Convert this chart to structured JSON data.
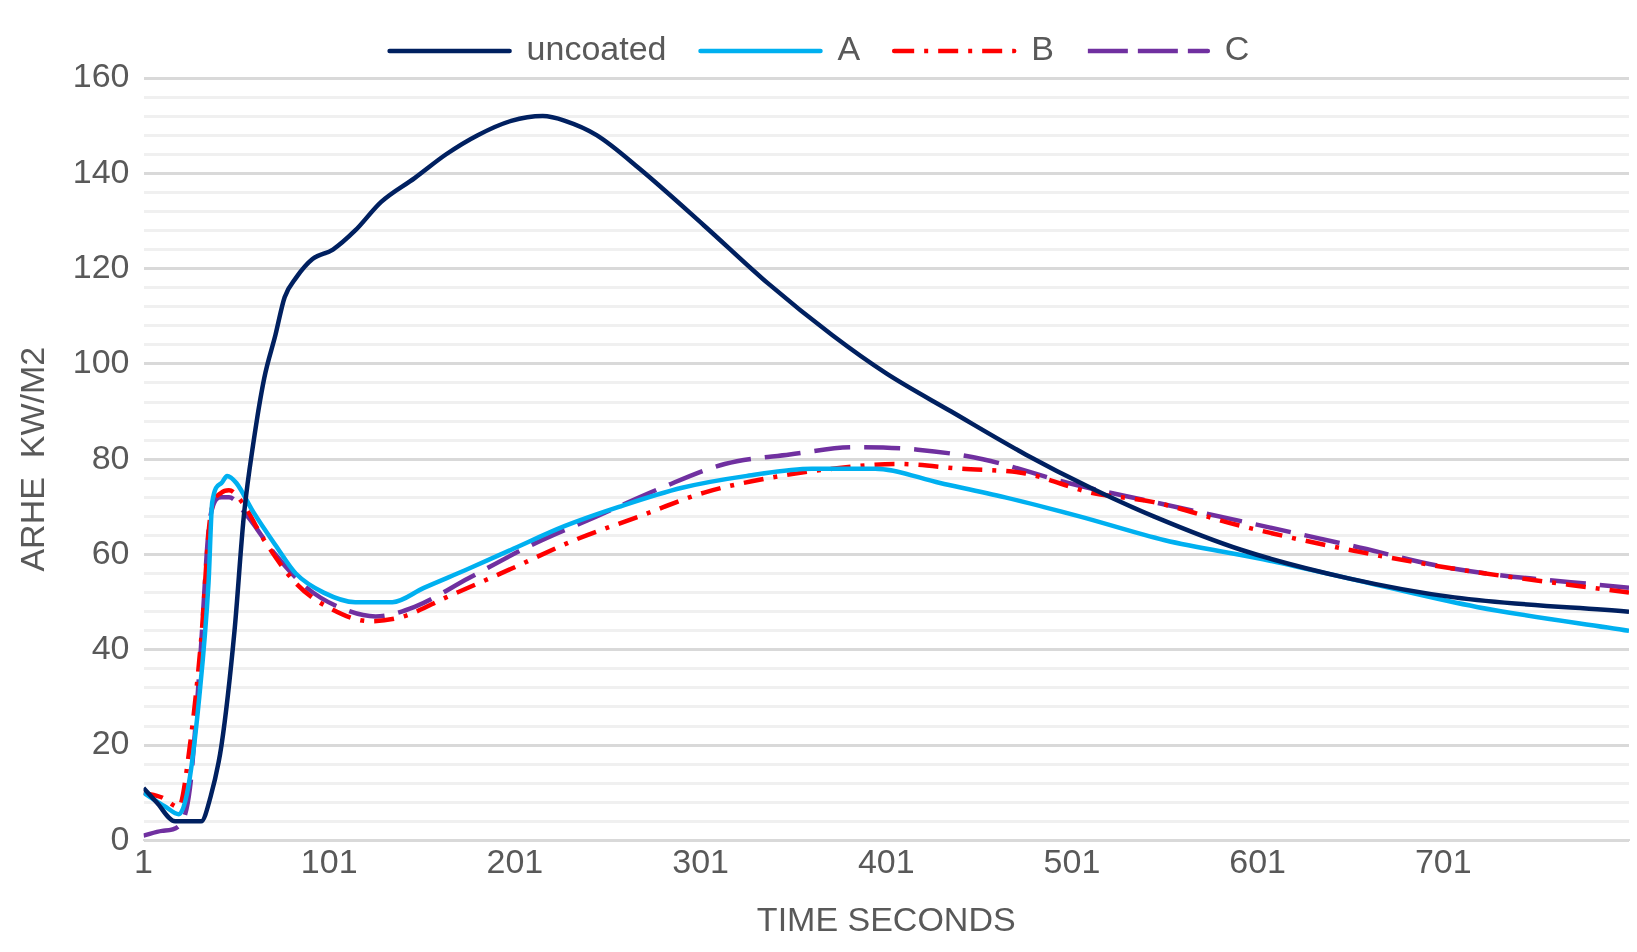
{
  "chart_data": {
    "type": "line",
    "xlabel": "TIME SECONDS",
    "ylabel": "ARHE  KW/M2",
    "xlim": [
      1,
      801
    ],
    "xticks": [
      1,
      101,
      201,
      301,
      401,
      501,
      601,
      701
    ],
    "ylim": [
      0,
      160
    ],
    "yticks": [
      0,
      {
        "value": 4,
        "label": null
      },
      {
        "value": 8,
        "label": null
      },
      {
        "value": 12,
        "label": null
      },
      {
        "value": 16,
        "label": null
      },
      20,
      {
        "value": 24,
        "label": null
      },
      {
        "value": 28,
        "label": null
      },
      {
        "value": 32,
        "label": null
      },
      {
        "value": 36,
        "label": null
      },
      40,
      {
        "value": 44,
        "label": null
      },
      {
        "value": 48,
        "label": null
      },
      {
        "value": 52,
        "label": null
      },
      {
        "value": 56,
        "label": null
      },
      60,
      {
        "value": 64,
        "label": null
      },
      {
        "value": 68,
        "label": null
      },
      {
        "value": 72,
        "label": null
      },
      {
        "value": 76,
        "label": null
      },
      80,
      {
        "value": 84,
        "label": null
      },
      {
        "value": 88,
        "label": null
      },
      {
        "value": 92,
        "label": null
      },
      {
        "value": 96,
        "label": null
      },
      100,
      {
        "value": 104,
        "label": null
      },
      {
        "value": 108,
        "label": null
      },
      {
        "value": 112,
        "label": null
      },
      {
        "value": 116,
        "label": null
      },
      120,
      {
        "value": 124,
        "label": null
      },
      {
        "value": 128,
        "label": null
      },
      {
        "value": 132,
        "label": null
      },
      {
        "value": 136,
        "label": null
      },
      140,
      {
        "value": 144,
        "label": null
      },
      {
        "value": 148,
        "label": null
      },
      {
        "value": 152,
        "label": null
      },
      {
        "value": 156,
        "label": null
      },
      160
    ],
    "grid": "y",
    "legend": "top",
    "marker": "none",
    "series": [
      {
        "name": "uncoated",
        "color": "#002060",
        "line_style": "solid",
        "x": [
          1,
          8,
          18,
          32,
          37,
          43,
          50,
          55,
          60,
          66,
          72,
          77,
          83,
          92,
          103,
          115,
          129,
          147,
          164,
          181,
          199,
          216,
          228,
          245,
          268,
          303,
          337,
          372,
          401,
          436,
          476,
          511,
          545,
          592,
          650,
          707,
          801
        ],
        "values": [
          11,
          8,
          4,
          4,
          9,
          20,
          44,
          68,
          83,
          97,
          106,
          114,
          118,
          122,
          124,
          128,
          134,
          139,
          144,
          148,
          151,
          152,
          151,
          148,
          141,
          129,
          117,
          106,
          98,
          90,
          81,
          74,
          68,
          61,
          55,
          51,
          48
        ]
      },
      {
        "name": "A",
        "color": "#00b0f0",
        "line_style": "solid",
        "x": [
          1,
          13,
          20,
          25,
          31,
          36,
          38,
          43,
          46,
          51,
          60,
          72,
          83,
          98,
          115,
          135,
          152,
          176,
          199,
          228,
          257,
          291,
          326,
          361,
          395,
          430,
          465,
          505,
          551,
          604,
          661,
          719,
          801
        ],
        "values": [
          10,
          7,
          5.5,
          11,
          30,
          54,
          71,
          75,
          76.5,
          75,
          69,
          62,
          56,
          52,
          50,
          50,
          53,
          57,
          61,
          66,
          70,
          74,
          76.5,
          78,
          78,
          75,
          72,
          68,
          63,
          59,
          54,
          49,
          44
        ]
      },
      {
        "name": "B",
        "color": "#ff0000",
        "line_style": "dashdot",
        "x": [
          1,
          11,
          20,
          26,
          32,
          37,
          43,
          47,
          54,
          66,
          83,
          100,
          123,
          141,
          164,
          199,
          233,
          268,
          303,
          337,
          372,
          407,
          441,
          476,
          511,
          545,
          592,
          650,
          707,
          801
        ],
        "values": [
          10,
          9,
          7,
          20,
          42,
          68,
          73,
          73.5,
          71,
          63,
          54,
          49,
          46,
          47,
          51,
          57,
          63,
          68,
          73,
          76,
          78,
          79,
          78,
          77,
          73,
          71,
          66,
          61,
          57,
          52
        ]
      },
      {
        "name": "C",
        "color": "#7030a0",
        "line_style": "dashed",
        "x": [
          1,
          11,
          20,
          26,
          31,
          37,
          43,
          47,
          57,
          72,
          89,
          106,
          126,
          147,
          176,
          210,
          245,
          280,
          314,
          349,
          384,
          418,
          453,
          499,
          545,
          592,
          650,
          707,
          801
        ],
        "values": [
          1,
          2,
          3,
          11,
          35,
          68,
          72,
          72,
          68,
          60,
          53,
          49,
          47,
          49,
          55,
          62,
          68,
          74,
          79,
          81,
          82.5,
          82,
          80,
          75,
          71,
          67,
          62,
          57,
          53
        ]
      }
    ]
  }
}
